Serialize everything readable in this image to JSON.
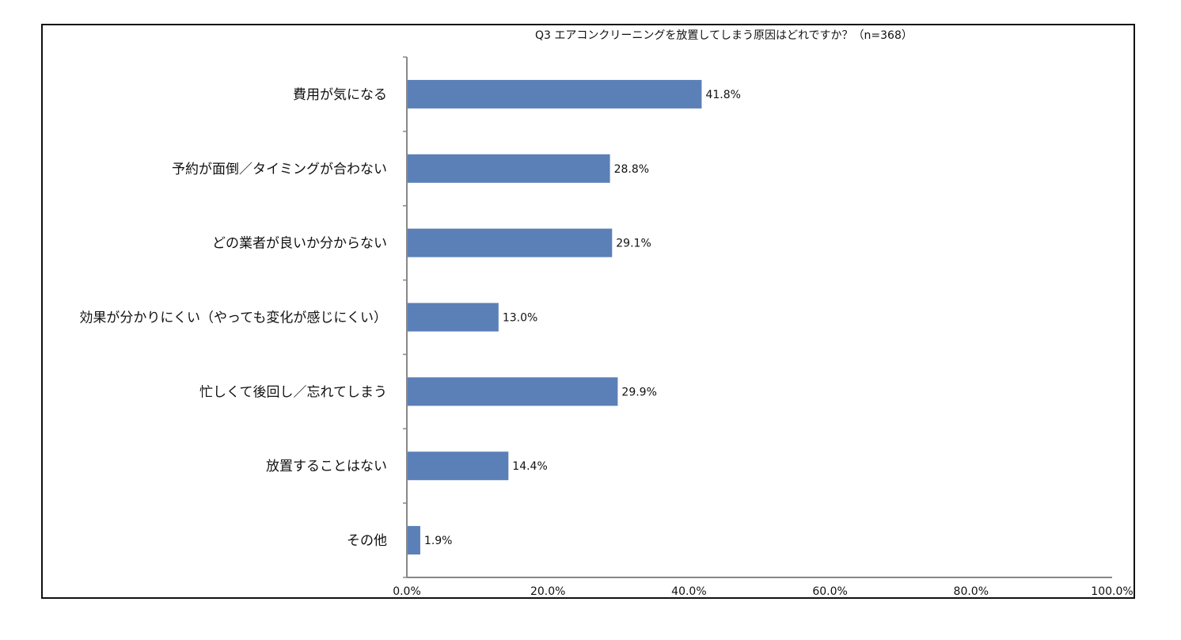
{
  "chart_data": {
    "type": "bar",
    "orientation": "horizontal",
    "title": "Q3 エアコンクリーニングを放置してしまう原因はどれですか？（n=368）",
    "categories": [
      "費用が気になる",
      "予約が面倒／タイミングが合わない",
      "どの業者が良いか分からない",
      "効果が分かりにくい（やっても変化が感じにくい）",
      "忙しくて後回し／忘れてしまう",
      "放置することはない",
      "その他"
    ],
    "values": [
      41.8,
      28.8,
      29.1,
      13.0,
      29.9,
      14.4,
      1.9
    ],
    "data_labels": [
      "41.8%",
      "28.8%",
      "29.1%",
      "13.0%",
      "29.9%",
      "14.4%",
      "1.9%"
    ],
    "x_ticks": [
      0,
      20,
      40,
      60,
      80,
      100
    ],
    "x_tick_labels": [
      "0.0%",
      "20.0%",
      "40.0%",
      "60.0%",
      "80.0%",
      "100.0%"
    ],
    "xlim": [
      0,
      100
    ],
    "xlabel": "",
    "ylabel": "",
    "grid": false,
    "legend": "none",
    "bar_color": "#5b80b8"
  }
}
